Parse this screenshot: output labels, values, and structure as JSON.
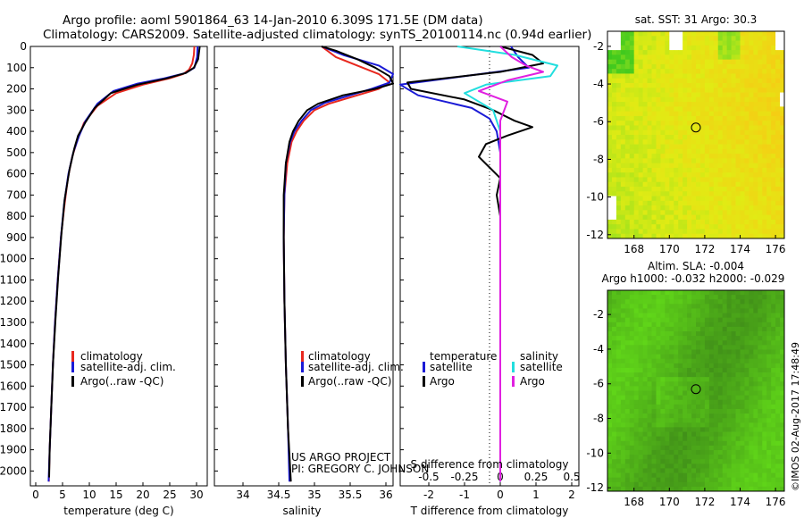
{
  "header": {
    "title_line1": "Argo profile: aoml 5901864_63 14-Jan-2010 6.309S 171.5E (DM data)",
    "title_line2": "Climatology: CARS2009. Satellite-adjusted climatology: synTS_20100114.nc (0.94d earlier)"
  },
  "colors": {
    "climatology": "#e8281e",
    "satellite": "#1a1ad6",
    "argo": "#000000",
    "salinity_satellite": "#22dede",
    "salinity_argo": "#e020e0"
  },
  "depth_axis": {
    "ticks": [
      0,
      100,
      200,
      300,
      400,
      500,
      600,
      700,
      800,
      900,
      1000,
      1100,
      1200,
      1300,
      1400,
      1500,
      1600,
      1700,
      1800,
      1900,
      2000
    ],
    "range": [
      0,
      2070
    ]
  },
  "chart_data": [
    {
      "type": "line",
      "name": "temperature-profile",
      "xlabel": "temperature (deg C)",
      "xlim": [
        -1,
        32
      ],
      "xticks": [
        0,
        5,
        10,
        15,
        20,
        25,
        30
      ],
      "legend": {
        "placement": "lower-middle",
        "entries": [
          "climatology",
          "satellite-adj. clim.",
          "Argo(..raw -QC)"
        ]
      },
      "series": [
        {
          "name": "climatology",
          "color_key": "climatology",
          "points": [
            [
              29.6,
              0
            ],
            [
              29.5,
              40
            ],
            [
              29.2,
              80
            ],
            [
              28.6,
              110
            ],
            [
              27.5,
              130
            ],
            [
              25,
              150
            ],
            [
              20,
              180
            ],
            [
              15,
              220
            ],
            [
              11.5,
              280
            ],
            [
              9,
              360
            ],
            [
              7.8,
              440
            ],
            [
              6.8,
              520
            ],
            [
              6,
              620
            ],
            [
              5.3,
              760
            ],
            [
              4.7,
              900
            ],
            [
              4.1,
              1100
            ],
            [
              3.6,
              1300
            ],
            [
              3.2,
              1500
            ],
            [
              2.9,
              1700
            ],
            [
              2.6,
              1900
            ],
            [
              2.45,
              2050
            ]
          ]
        },
        {
          "name": "satellite-adj. clim.",
          "color_key": "satellite",
          "points": [
            [
              30.2,
              0
            ],
            [
              30.1,
              50
            ],
            [
              29.6,
              100
            ],
            [
              28,
              125
            ],
            [
              24,
              150
            ],
            [
              19,
              175
            ],
            [
              14.5,
              210
            ],
            [
              11.5,
              270
            ],
            [
              9.3,
              350
            ],
            [
              8.1,
              420
            ],
            [
              7,
              500
            ],
            [
              6.1,
              600
            ],
            [
              5.3,
              740
            ],
            [
              4.7,
              900
            ],
            [
              4.1,
              1100
            ],
            [
              3.6,
              1300
            ],
            [
              3.2,
              1500
            ],
            [
              2.9,
              1700
            ],
            [
              2.6,
              1900
            ],
            [
              2.4,
              2050
            ]
          ]
        },
        {
          "name": "Argo(..raw -QC)",
          "color_key": "argo",
          "points": [
            [
              30.6,
              0
            ],
            [
              30.3,
              60
            ],
            [
              29.5,
              100
            ],
            [
              28,
              125
            ],
            [
              24.5,
              150
            ],
            [
              19,
              180
            ],
            [
              14,
              220
            ],
            [
              11,
              290
            ],
            [
              9.2,
              360
            ],
            [
              7.9,
              420
            ],
            [
              7.2,
              480
            ],
            [
              6.3,
              580
            ],
            [
              5.4,
              720
            ],
            [
              4.8,
              880
            ],
            [
              4.2,
              1080
            ],
            [
              3.7,
              1280
            ],
            [
              3.25,
              1480
            ],
            [
              2.9,
              1700
            ],
            [
              2.6,
              1900
            ],
            [
              2.5,
              2030
            ]
          ]
        }
      ]
    },
    {
      "type": "line",
      "name": "salinity-profile",
      "xlabel": "salinity",
      "xlim": [
        33.6,
        36.1
      ],
      "xticks": [
        34,
        34.5,
        35,
        35.5,
        36
      ],
      "xtick_labels": [
        "34",
        "34.5",
        "35",
        "35.5",
        "36"
      ],
      "legend": {
        "placement": "lower-right",
        "entries": [
          "climatology",
          "satellite-adj. clim.",
          "Argo(..raw -QC)"
        ]
      },
      "annotations": [
        "US ARGO PROJECT",
        "PI: GREGORY C. JOHNSON"
      ],
      "series": [
        {
          "name": "climatology",
          "color_key": "climatology",
          "points": [
            [
              35.1,
              0
            ],
            [
              35.3,
              50
            ],
            [
              35.6,
              90
            ],
            [
              35.9,
              130
            ],
            [
              36.05,
              170
            ],
            [
              35.9,
              200
            ],
            [
              35.6,
              230
            ],
            [
              35.2,
              270
            ],
            [
              35,
              300
            ],
            [
              34.85,
              350
            ],
            [
              34.75,
              400
            ],
            [
              34.68,
              450
            ],
            [
              34.62,
              550
            ],
            [
              34.58,
              700
            ],
            [
              34.57,
              900
            ],
            [
              34.58,
              1200
            ],
            [
              34.6,
              1500
            ],
            [
              34.63,
              1800
            ],
            [
              34.66,
              2050
            ]
          ]
        },
        {
          "name": "satellite-adj. clim.",
          "color_key": "satellite",
          "points": [
            [
              35.1,
              0
            ],
            [
              35.4,
              40
            ],
            [
              35.9,
              90
            ],
            [
              36.1,
              130
            ],
            [
              36.05,
              170
            ],
            [
              35.8,
              200
            ],
            [
              35.5,
              230
            ],
            [
              35.15,
              265
            ],
            [
              34.95,
              300
            ],
            [
              34.82,
              350
            ],
            [
              34.72,
              400
            ],
            [
              34.66,
              450
            ],
            [
              34.6,
              550
            ],
            [
              34.58,
              700
            ],
            [
              34.57,
              900
            ],
            [
              34.58,
              1200
            ],
            [
              34.6,
              1500
            ],
            [
              34.63,
              1800
            ],
            [
              34.65,
              2050
            ]
          ]
        },
        {
          "name": "Argo(..raw -QC)",
          "color_key": "argo",
          "points": [
            [
              35.1,
              0
            ],
            [
              35.3,
              20
            ],
            [
              35.6,
              60
            ],
            [
              35.85,
              100
            ],
            [
              36.05,
              140
            ],
            [
              36.1,
              175
            ],
            [
              35.85,
              200
            ],
            [
              35.4,
              230
            ],
            [
              35.05,
              270
            ],
            [
              34.9,
              300
            ],
            [
              34.78,
              350
            ],
            [
              34.7,
              400
            ],
            [
              34.65,
              450
            ],
            [
              34.6,
              550
            ],
            [
              34.57,
              700
            ],
            [
              34.57,
              900
            ],
            [
              34.58,
              1200
            ],
            [
              34.6,
              1500
            ],
            [
              34.63,
              1800
            ],
            [
              34.67,
              2050
            ]
          ]
        }
      ]
    },
    {
      "type": "line",
      "name": "difference-profile",
      "xlabel_top": "S difference from climatology",
      "xlabel": "T difference from climatology",
      "xlim": [
        -2.8,
        2.2
      ],
      "xticks": [
        -2,
        -1,
        0,
        1,
        2
      ],
      "s_ticks": [
        -0.5,
        -0.25,
        0,
        0.25,
        0.5
      ],
      "s_tick_labels": [
        "-0.5",
        "-0.25",
        "0",
        "0.25",
        "0.5"
      ],
      "s_scale": 4,
      "legend": {
        "placement": "lower",
        "temperature_header": "temperature",
        "salinity_header": "salinity",
        "entries": [
          "satellite",
          "Argo",
          "satellite",
          "Argo"
        ]
      },
      "series": [
        {
          "name": "temperature satellite",
          "color_key": "satellite",
          "points": [
            [
              0.3,
              0
            ],
            [
              0.5,
              50
            ],
            [
              0.8,
              100
            ],
            [
              -1,
              140
            ],
            [
              -2.8,
              180
            ],
            [
              -2.3,
              230
            ],
            [
              -0.8,
              290
            ],
            [
              -0.3,
              340
            ],
            [
              -0.1,
              400
            ],
            [
              0,
              500
            ],
            [
              0,
              700
            ],
            [
              0,
              900
            ],
            [
              0,
              1200
            ],
            [
              0,
              1500
            ],
            [
              0,
              1800
            ],
            [
              0,
              2050
            ]
          ]
        },
        {
          "name": "temperature Argo",
          "color_key": "argo",
          "points": [
            [
              0,
              0
            ],
            [
              0.9,
              40
            ],
            [
              1.2,
              80
            ],
            [
              0,
              120
            ],
            [
              -2.6,
              170
            ],
            [
              -2.5,
              200
            ],
            [
              -1,
              250
            ],
            [
              -0.2,
              300
            ],
            [
              0.4,
              350
            ],
            [
              0.9,
              380
            ],
            [
              0.2,
              420
            ],
            [
              -0.4,
              460
            ],
            [
              -0.6,
              520
            ],
            [
              -0.3,
              570
            ],
            [
              0,
              620
            ],
            [
              -0.1,
              700
            ],
            [
              0,
              800
            ],
            [
              0,
              1000
            ],
            [
              0,
              1300
            ],
            [
              0,
              1600
            ],
            [
              0,
              1900
            ],
            [
              0,
              2050
            ]
          ]
        },
        {
          "name": "salinity satellite",
          "color_key": "salinity_satellite",
          "points": [
            [
              -0.3,
              0
            ],
            [
              0.1,
              40
            ],
            [
              0.4,
              90
            ],
            [
              0.35,
              140
            ],
            [
              -0.1,
              180
            ],
            [
              -0.25,
              220
            ],
            [
              -0.05,
              300
            ],
            [
              0,
              400
            ],
            [
              0,
              600
            ],
            [
              0,
              900
            ],
            [
              0,
              1200
            ],
            [
              0,
              1500
            ],
            [
              0,
              1800
            ],
            [
              0,
              2050
            ]
          ]
        },
        {
          "name": "salinity Argo",
          "color_key": "salinity_argo",
          "points": [
            [
              0,
              0
            ],
            [
              0.08,
              50
            ],
            [
              0.18,
              90
            ],
            [
              0.3,
              120
            ],
            [
              0.05,
              160
            ],
            [
              -0.15,
              210
            ],
            [
              0.05,
              260
            ],
            [
              0,
              350
            ],
            [
              0,
              500
            ],
            [
              0,
              800
            ],
            [
              0,
              1100
            ],
            [
              0,
              1500
            ],
            [
              0,
              1800
            ],
            [
              0,
              2050
            ]
          ]
        }
      ]
    },
    {
      "type": "heatmap",
      "name": "sst-map",
      "title": "sat. SST: 31 Argo: 30.3",
      "xlim": [
        166.5,
        176.5
      ],
      "ylim": [
        -12.2,
        -1.2
      ],
      "xticks": [
        168,
        170,
        172,
        174,
        176
      ],
      "yticks": [
        -2,
        -4,
        -6,
        -8,
        -10,
        -12
      ],
      "marker": [
        171.5,
        -6.309
      ]
    },
    {
      "type": "heatmap",
      "name": "sla-map",
      "title": "Altim. SLA: -0.004",
      "subtitle": "Argo h1000: -0.032 h2000: -0.029",
      "xlim": [
        166.5,
        176.5
      ],
      "ylim": [
        -12.2,
        -0.6
      ],
      "xticks": [
        168,
        170,
        172,
        174,
        176
      ],
      "yticks": [
        -2,
        -4,
        -6,
        -8,
        -10,
        -12
      ],
      "marker": [
        171.5,
        -6.309
      ]
    }
  ],
  "credit": "©IMOS 02-Aug-2017 17:48:49"
}
